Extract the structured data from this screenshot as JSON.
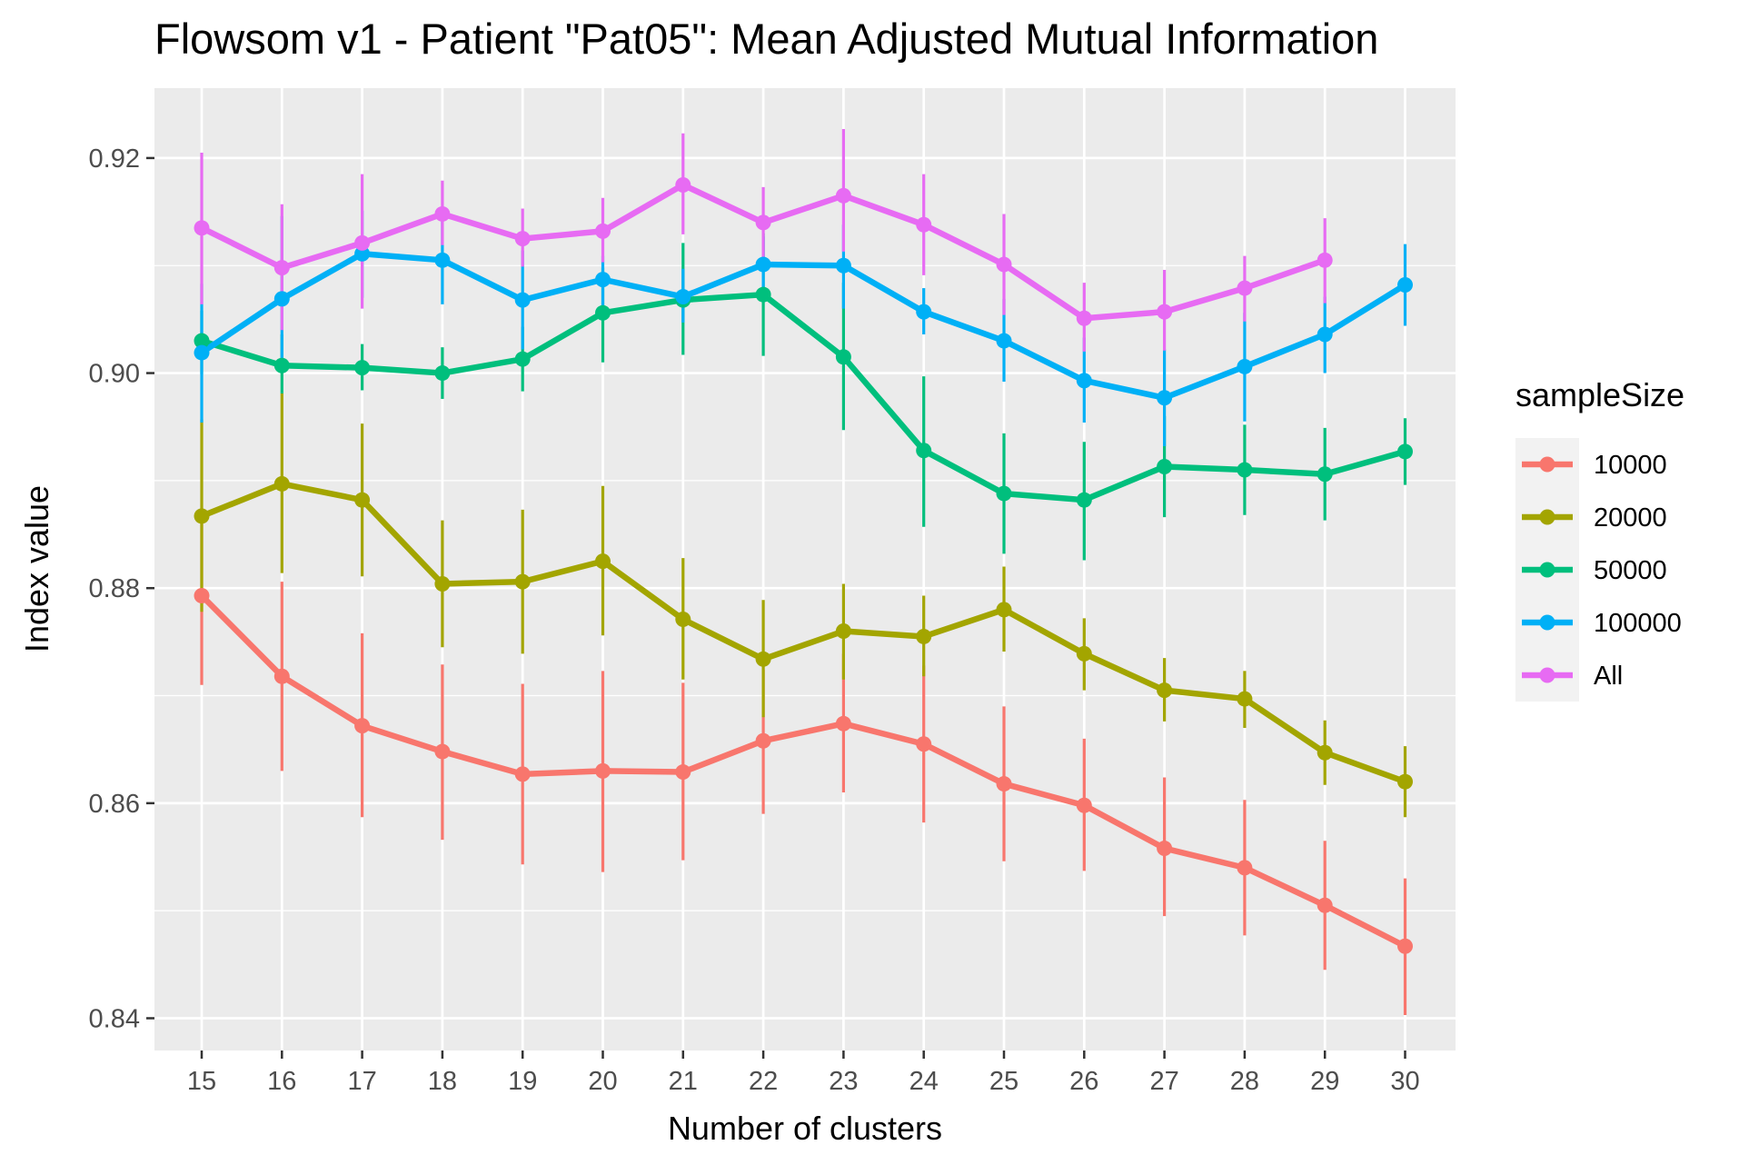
{
  "chart_data": {
    "type": "line",
    "title": "Flowsom v1 - Patient \"Pat05\": Mean Adjusted Mutual Information",
    "xlabel": "Number of clusters",
    "ylabel": "Index value",
    "x": [
      15,
      16,
      17,
      18,
      19,
      20,
      21,
      22,
      23,
      24,
      25,
      26,
      27,
      28,
      29,
      30
    ],
    "ylim": [
      0.837,
      0.9265
    ],
    "yticks": [
      0.84,
      0.86,
      0.88,
      0.9,
      0.92
    ],
    "ytick_labels": [
      "0.84",
      "0.86",
      "0.88",
      "0.90",
      "0.92"
    ],
    "grid": true,
    "legend": {
      "title": "sampleSize",
      "position": "right"
    },
    "series": [
      {
        "name": "10000",
        "color": "#F8766D",
        "values": [
          0.8793,
          0.8718,
          0.8672,
          0.8648,
          0.8627,
          0.863,
          0.8629,
          0.8658,
          0.8674,
          0.8655,
          0.8618,
          0.8598,
          0.8558,
          0.854,
          0.8505,
          0.8467
        ],
        "lower": [
          0.871,
          0.863,
          0.8587,
          0.8566,
          0.8543,
          0.8536,
          0.8547,
          0.859,
          0.861,
          0.8582,
          0.8546,
          0.8537,
          0.8495,
          0.8477,
          0.8445,
          0.8403
        ],
        "upper": [
          0.886,
          0.8806,
          0.8758,
          0.8729,
          0.8711,
          0.8723,
          0.8712,
          0.8724,
          0.8739,
          0.8728,
          0.869,
          0.866,
          0.8624,
          0.8603,
          0.8565,
          0.853
        ]
      },
      {
        "name": "20000",
        "color": "#A3A500",
        "values": [
          0.8867,
          0.8897,
          0.8882,
          0.8804,
          0.8806,
          0.8825,
          0.8771,
          0.8734,
          0.876,
          0.8755,
          0.878,
          0.8739,
          0.8705,
          0.8697,
          0.8647,
          0.862
        ],
        "lower": [
          0.8778,
          0.8814,
          0.8811,
          0.8745,
          0.8739,
          0.8756,
          0.8715,
          0.868,
          0.8715,
          0.8718,
          0.8741,
          0.8705,
          0.8676,
          0.867,
          0.8617,
          0.8587
        ],
        "upper": [
          0.8957,
          0.8981,
          0.8953,
          0.8863,
          0.8873,
          0.8895,
          0.8828,
          0.8789,
          0.8804,
          0.8793,
          0.882,
          0.8772,
          0.8735,
          0.8723,
          0.8677,
          0.8653
        ]
      },
      {
        "name": "50000",
        "color": "#00BF7D",
        "values": [
          0.903,
          0.9007,
          0.9005,
          0.9,
          0.9013,
          0.9056,
          0.9068,
          0.9073,
          0.9015,
          0.8928,
          0.8888,
          0.8882,
          0.8913,
          0.891,
          0.8906,
          0.8927
        ],
        "lower": [
          0.8999,
          0.8981,
          0.8984,
          0.8976,
          0.8983,
          0.901,
          0.9017,
          0.9016,
          0.8947,
          0.8857,
          0.8832,
          0.8826,
          0.8866,
          0.8868,
          0.8863,
          0.8896
        ],
        "upper": [
          0.9058,
          0.9036,
          0.9027,
          0.9024,
          0.9043,
          0.9098,
          0.9121,
          0.913,
          0.9084,
          0.8997,
          0.8944,
          0.8936,
          0.896,
          0.8952,
          0.8949,
          0.8958
        ]
      },
      {
        "name": "100000",
        "color": "#00B0F6",
        "values": [
          0.9019,
          0.9069,
          0.9111,
          0.9105,
          0.9068,
          0.9087,
          0.9071,
          0.9101,
          0.91,
          0.9057,
          0.903,
          0.8993,
          0.8977,
          0.9006,
          0.9036,
          0.9082
        ],
        "lower": [
          0.8954,
          0.9003,
          0.907,
          0.9064,
          0.9022,
          0.9062,
          0.9047,
          0.9075,
          0.906,
          0.9036,
          0.8992,
          0.8954,
          0.8932,
          0.8955,
          0.9,
          0.9044
        ],
        "upper": [
          0.9083,
          0.9146,
          0.9151,
          0.9148,
          0.9114,
          0.9109,
          0.9097,
          0.9127,
          0.9138,
          0.9079,
          0.9069,
          0.9033,
          0.9022,
          0.9056,
          0.9071,
          0.912
        ]
      },
      {
        "name": "All",
        "color": "#E76BF3",
        "values": [
          0.9135,
          0.9098,
          0.9121,
          0.9148,
          0.9125,
          0.9132,
          0.9175,
          0.914,
          0.9165,
          0.9138,
          0.9101,
          0.9051,
          0.9057,
          0.9079,
          0.9105,
          null
        ],
        "lower": [
          0.9064,
          0.904,
          0.906,
          0.9119,
          0.9099,
          0.9103,
          0.9129,
          0.9107,
          0.9113,
          0.9091,
          0.9054,
          0.902,
          0.9021,
          0.9048,
          0.9065,
          null
        ],
        "upper": [
          0.9205,
          0.9157,
          0.9185,
          0.9179,
          0.9153,
          0.9163,
          0.9223,
          0.9173,
          0.9227,
          0.9185,
          0.9148,
          0.9084,
          0.9096,
          0.9109,
          0.9144,
          null
        ]
      }
    ]
  }
}
